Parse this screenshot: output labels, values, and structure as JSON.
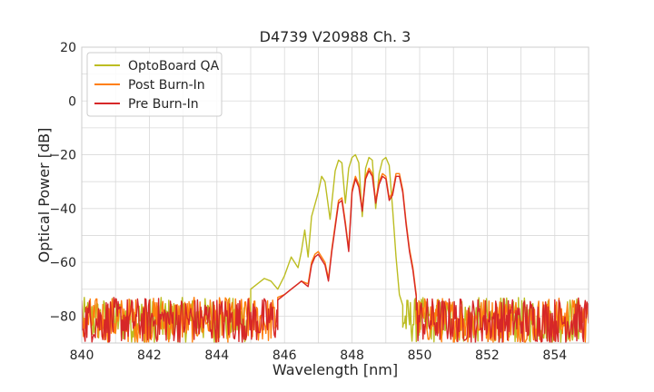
{
  "chart_data": {
    "type": "line",
    "title": "D4739 V20988 Ch. 3",
    "xlabel": "Wavelength [nm]",
    "ylabel": "Optical Power [dB]",
    "xlim": [
      840,
      855
    ],
    "ylim": [
      -90,
      20
    ],
    "xticks": [
      840,
      842,
      844,
      846,
      848,
      850,
      852,
      854
    ],
    "yticks": [
      20,
      0,
      -20,
      -40,
      -60,
      -80
    ],
    "grid": true,
    "legend_position": "top-left",
    "noise_floor": {
      "x_range": [
        840,
        855
      ],
      "y_range": [
        -90,
        -73
      ]
    },
    "series": [
      {
        "name": "OptoBoard QA",
        "color": "#bcbd22",
        "points": [
          [
            845.0,
            -70
          ],
          [
            845.2,
            -68
          ],
          [
            845.4,
            -66
          ],
          [
            845.6,
            -67
          ],
          [
            845.8,
            -70
          ],
          [
            846.0,
            -65
          ],
          [
            846.2,
            -58
          ],
          [
            846.4,
            -62
          ],
          [
            846.5,
            -56
          ],
          [
            846.6,
            -48
          ],
          [
            846.7,
            -58
          ],
          [
            846.8,
            -43
          ],
          [
            847.0,
            -34
          ],
          [
            847.1,
            -28
          ],
          [
            847.2,
            -30
          ],
          [
            847.35,
            -44
          ],
          [
            847.5,
            -26
          ],
          [
            847.6,
            -22
          ],
          [
            847.7,
            -23
          ],
          [
            847.8,
            -38
          ],
          [
            847.9,
            -25
          ],
          [
            848.0,
            -21
          ],
          [
            848.1,
            -20
          ],
          [
            848.2,
            -23
          ],
          [
            848.3,
            -43
          ],
          [
            848.4,
            -25
          ],
          [
            848.5,
            -21
          ],
          [
            848.6,
            -22
          ],
          [
            848.7,
            -40
          ],
          [
            848.8,
            -27
          ],
          [
            848.9,
            -22
          ],
          [
            849.0,
            -21
          ],
          [
            849.1,
            -24
          ],
          [
            849.2,
            -40
          ],
          [
            849.3,
            -58
          ],
          [
            849.4,
            -72
          ],
          [
            849.5,
            -76
          ]
        ]
      },
      {
        "name": "Post Burn-In",
        "color": "#ff7f0e",
        "points": [
          [
            845.8,
            -73
          ],
          [
            846.0,
            -72
          ],
          [
            846.2,
            -70
          ],
          [
            846.4,
            -68
          ],
          [
            846.5,
            -67
          ],
          [
            846.7,
            -68
          ],
          [
            846.8,
            -60
          ],
          [
            846.9,
            -57
          ],
          [
            847.0,
            -56
          ],
          [
            847.2,
            -60
          ],
          [
            847.3,
            -66
          ],
          [
            847.4,
            -55
          ],
          [
            847.5,
            -46
          ],
          [
            847.6,
            -37
          ],
          [
            847.7,
            -36
          ],
          [
            847.8,
            -45
          ],
          [
            847.9,
            -55
          ],
          [
            848.0,
            -33
          ],
          [
            848.1,
            -28
          ],
          [
            848.2,
            -31
          ],
          [
            848.3,
            -40
          ],
          [
            848.4,
            -28
          ],
          [
            848.5,
            -25
          ],
          [
            848.6,
            -27
          ],
          [
            848.7,
            -37
          ],
          [
            848.8,
            -30
          ],
          [
            848.9,
            -27
          ],
          [
            849.0,
            -28
          ],
          [
            849.1,
            -36
          ],
          [
            849.2,
            -34
          ],
          [
            849.3,
            -27
          ],
          [
            849.4,
            -27
          ],
          [
            849.5,
            -33
          ],
          [
            849.6,
            -45
          ],
          [
            849.7,
            -55
          ],
          [
            849.8,
            -62
          ],
          [
            849.9,
            -72
          ]
        ]
      },
      {
        "name": "Pre Burn-In",
        "color": "#d62728",
        "points": [
          [
            845.8,
            -74
          ],
          [
            846.0,
            -72
          ],
          [
            846.2,
            -70
          ],
          [
            846.4,
            -68
          ],
          [
            846.5,
            -67
          ],
          [
            846.7,
            -69
          ],
          [
            846.8,
            -61
          ],
          [
            846.9,
            -58
          ],
          [
            847.0,
            -57
          ],
          [
            847.2,
            -61
          ],
          [
            847.3,
            -67
          ],
          [
            847.4,
            -56
          ],
          [
            847.5,
            -47
          ],
          [
            847.6,
            -38
          ],
          [
            847.7,
            -37
          ],
          [
            847.8,
            -46
          ],
          [
            847.9,
            -56
          ],
          [
            848.0,
            -34
          ],
          [
            848.1,
            -29
          ],
          [
            848.2,
            -32
          ],
          [
            848.3,
            -41
          ],
          [
            848.4,
            -29
          ],
          [
            848.5,
            -26
          ],
          [
            848.6,
            -28
          ],
          [
            848.7,
            -38
          ],
          [
            848.8,
            -31
          ],
          [
            848.9,
            -28
          ],
          [
            849.0,
            -29
          ],
          [
            849.1,
            -37
          ],
          [
            849.2,
            -35
          ],
          [
            849.3,
            -28
          ],
          [
            849.4,
            -28
          ],
          [
            849.5,
            -34
          ],
          [
            849.6,
            -46
          ],
          [
            849.7,
            -56
          ],
          [
            849.8,
            -63
          ],
          [
            849.9,
            -73
          ]
        ]
      }
    ]
  }
}
